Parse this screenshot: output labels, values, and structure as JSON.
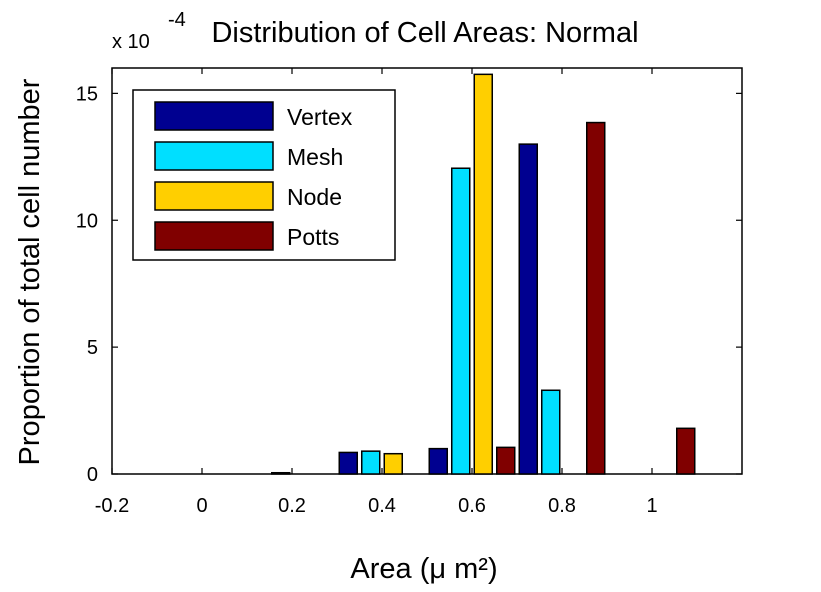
{
  "chart_data": {
    "type": "bar",
    "title": "Distribution of Cell Areas: Normal",
    "xlabel": "Area (μ m²)",
    "ylabel": "Proportion of total cell number",
    "y_exponent": {
      "prefix": "x 10",
      "power": "-4"
    },
    "xlim": [
      -0.2,
      1.2
    ],
    "ylim": [
      0,
      16
    ],
    "x_ticks": [
      "-0.2",
      "0",
      "0.2",
      "0.4",
      "0.6",
      "0.8",
      "1"
    ],
    "y_ticks": [
      "0",
      "5",
      "10",
      "15"
    ],
    "x": [
      0.2,
      0.4,
      0.6,
      0.8,
      1.0
    ],
    "series": [
      {
        "name": "Vertex",
        "color": "#000090",
        "values": [
          0,
          0.85,
          1.0,
          13.0,
          0
        ]
      },
      {
        "name": "Mesh",
        "color": "#00DFFF",
        "values": [
          0.05,
          0.9,
          12.05,
          3.3,
          0
        ]
      },
      {
        "name": "Node",
        "color": "#FFCF00",
        "values": [
          0,
          0.8,
          15.75,
          0,
          0
        ]
      },
      {
        "name": "Potts",
        "color": "#800000",
        "values": [
          0,
          0,
          1.05,
          13.85,
          1.8
        ]
      }
    ],
    "legend_position": "top-left",
    "grid": false
  }
}
